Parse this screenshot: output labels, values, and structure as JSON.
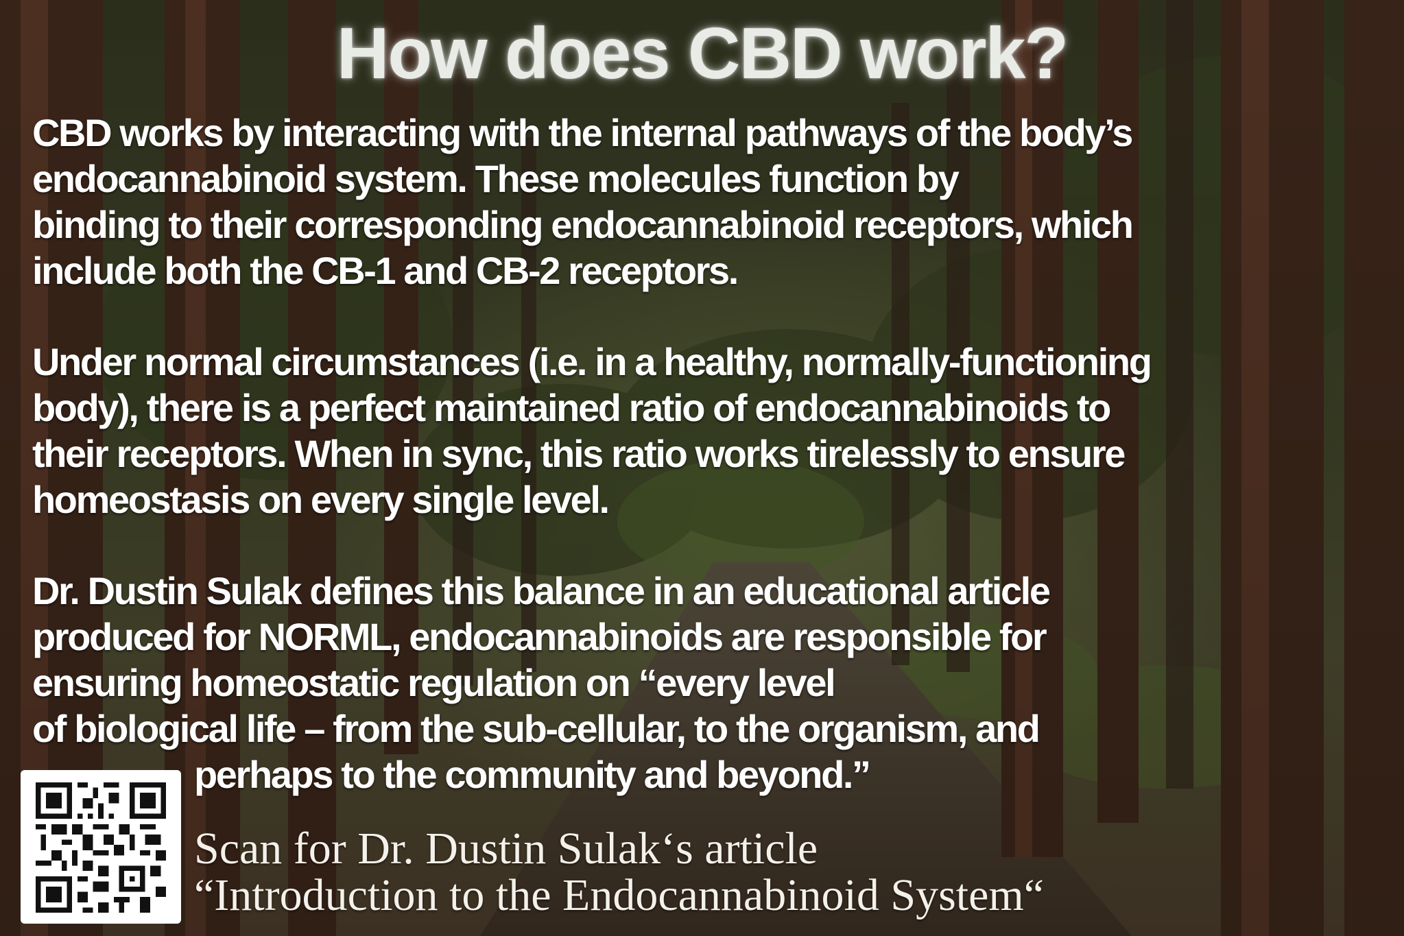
{
  "title": "How does CBD work?",
  "paragraph_1": [
    "CBD works by interacting with the internal pathways of the body’s",
    "endocannabinoid system. These molecules function by",
    "binding to their corresponding endocannabinoid receptors, which",
    "include both the CB-1 and CB-2 receptors."
  ],
  "paragraph_2": [
    "Under normal circumstances (i.e. in a healthy, normally-functioning",
    "body), there is a perfect maintained ratio of endocannabinoids to",
    "their receptors. When in sync, this ratio works tirelessly to ensure",
    "homeostasis on every single level."
  ],
  "paragraph_3": [
    "Dr. Dustin Sulak defines this balance in an educational article",
    "produced for NORML, endocannabinoids are responsible for",
    "ensuring homeostatic regulation on “every level",
    "of biological life – from the sub-cellular, to the organism, and",
    "perhaps to the community and beyond.”"
  ],
  "qr_caption": [
    "Scan for Dr. Dustin Sulak‘s article",
    "“Introduction to the Endocannabinoid System“"
  ],
  "qr_code": {
    "icon": "qr-code-icon"
  },
  "colors": {
    "text": "#ffffff",
    "title": "#e9ece6",
    "background_forest": "#3b3a24"
  }
}
